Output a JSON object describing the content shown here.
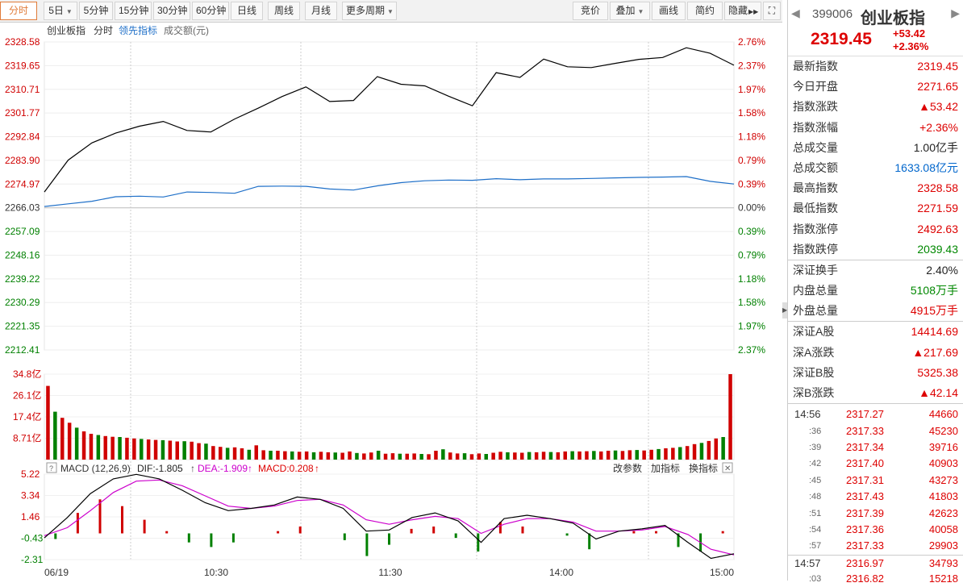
{
  "toolbar": {
    "periods": [
      "分时",
      "5日",
      "5分钟",
      "15分钟",
      "30分钟",
      "60分钟",
      "日线",
      "周线",
      "月线",
      "更多周期"
    ],
    "actions": [
      "竞价",
      "叠加",
      "画线",
      "简约",
      "隐藏"
    ]
  },
  "legend": {
    "name": "创业板指",
    "mode": "分时",
    "leading": "领先指标",
    "volume": "成交额(元)"
  },
  "price_axis": [
    "2328.58",
    "2319.65",
    "2310.71",
    "2301.77",
    "2292.84",
    "2283.90",
    "2274.97",
    "2266.03",
    "2257.09",
    "2248.16",
    "2239.22",
    "2230.29",
    "2221.35",
    "2212.41"
  ],
  "pct_axis": [
    "2.76%",
    "2.37%",
    "1.97%",
    "1.58%",
    "1.18%",
    "0.79%",
    "0.39%",
    "0.00%",
    "0.39%",
    "0.79%",
    "1.18%",
    "1.58%",
    "1.97%",
    "2.37%"
  ],
  "volume_axis": [
    "34.8亿",
    "26.1亿",
    "17.4亿",
    "8.71亿"
  ],
  "macd": {
    "title": "MACD (12,26,9)",
    "dif": "DIF:-1.805",
    "dea": "DEA:-1.909",
    "macd": "MACD:0.208",
    "actions": [
      "改参数",
      "加指标",
      "换指标"
    ],
    "axis": [
      "5.22",
      "3.34",
      "1.46",
      "-0.43",
      "-2.31"
    ]
  },
  "time_axis": [
    "06/19",
    "10:30",
    "11:30",
    "14:00",
    "15:00"
  ],
  "colors": {
    "up": "#d00000",
    "down": "#008000",
    "avg_line": "#1e6fc8",
    "dea": "#cc00cc"
  },
  "quote": {
    "code": "399006",
    "name": "创业板指",
    "price": "2319.45",
    "change": "+53.42",
    "change_pct": "+2.36%",
    "rows": [
      {
        "label": "最新指数",
        "value": "2319.45",
        "color": "red"
      },
      {
        "label": "今日开盘",
        "value": "2271.65",
        "color": "red"
      },
      {
        "label": "指数涨跌",
        "value": "▲53.42",
        "color": "red"
      },
      {
        "label": "指数涨幅",
        "value": "+2.36%",
        "color": "red"
      },
      {
        "label": "总成交量",
        "value": "1.00亿手",
        "color": "black"
      },
      {
        "label": "总成交额",
        "value": "1633.08亿元",
        "color": "blue"
      },
      {
        "label": "最高指数",
        "value": "2328.58",
        "color": "red"
      },
      {
        "label": "最低指数",
        "value": "2271.59",
        "color": "red"
      },
      {
        "label": "指数涨停",
        "value": "2492.63",
        "color": "red"
      },
      {
        "label": "指数跌停",
        "value": "2039.43",
        "color": "green"
      }
    ],
    "rows2": [
      {
        "label": "深证换手",
        "value": "2.40%",
        "color": "black"
      },
      {
        "label": "内盘总量",
        "value": "5108万手",
        "color": "green"
      },
      {
        "label": "外盘总量",
        "value": "4915万手",
        "color": "red"
      }
    ],
    "rows3": [
      {
        "label": "深证A股",
        "value": "14414.69",
        "color": "red"
      },
      {
        "label": "深A涨跌",
        "value": "▲217.69",
        "color": "red"
      },
      {
        "label": "深证B股",
        "value": "5325.38",
        "color": "red"
      },
      {
        "label": "深B涨跌",
        "value": "▲42.14",
        "color": "red"
      }
    ]
  },
  "trades": [
    {
      "time": "14:56",
      "price": "2317.27",
      "vol": "44660"
    },
    {
      "time": ":36",
      "price": "2317.33",
      "vol": "45230"
    },
    {
      "time": ":39",
      "price": "2317.34",
      "vol": "39716"
    },
    {
      "time": ":42",
      "price": "2317.40",
      "vol": "40903"
    },
    {
      "time": ":45",
      "price": "2317.31",
      "vol": "43273"
    },
    {
      "time": ":48",
      "price": "2317.43",
      "vol": "41803"
    },
    {
      "time": ":51",
      "price": "2317.39",
      "vol": "42623"
    },
    {
      "time": ":54",
      "price": "2317.36",
      "vol": "40058"
    },
    {
      "time": ":57",
      "price": "2317.33",
      "vol": "29903"
    },
    {
      "time": "14:57",
      "price": "2316.97",
      "vol": "34793"
    },
    {
      "time": ":03",
      "price": "2316.82",
      "vol": "15218"
    }
  ],
  "chart_data": {
    "type": "line",
    "x_range": [
      "09:30",
      "15:00"
    ],
    "ylim": [
      2212.41,
      2328.58
    ],
    "prev_close": 2266.03,
    "series": [
      {
        "values": [
          2272.0,
          2284.0,
          2290.5,
          2294.2,
          2296.8,
          2298.6,
          2295.2,
          2294.6,
          2299.5,
          2303.6,
          2308.0,
          2311.6,
          2306.1,
          2306.5,
          2315.5,
          2312.6,
          2312.0,
          2308.1,
          2304.5,
          2317.0,
          2315.2,
          2322.1,
          2319.2,
          2318.9,
          2320.5,
          2322.0,
          2322.7,
          2326.4,
          2324.3,
          2319.8
        ]
      },
      {
        "values": [
          2266.5,
          2267.5,
          2268.5,
          2270.2,
          2270.4,
          2270.1,
          2272.0,
          2271.8,
          2271.5,
          2274.1,
          2274.2,
          2274.1,
          2273.1,
          2272.7,
          2274.3,
          2275.5,
          2276.2,
          2276.5,
          2276.4,
          2277.0,
          2276.6,
          2276.9,
          2276.9,
          2277.1,
          2277.3,
          2277.5,
          2277.6,
          2277.8,
          2276.0,
          2275.0
        ]
      }
    ],
    "volume_ylim": [
      0,
      34.8
    ],
    "volume": [
      30.0,
      19.5,
      17.0,
      15.0,
      13.0,
      11.5,
      10.5,
      10.0,
      9.6,
      9.3,
      9.2,
      8.9,
      8.6,
      8.4,
      8.2,
      8.0,
      7.9,
      7.7,
      7.4,
      7.5,
      7.3,
      6.7,
      6.5,
      5.5,
      5.2,
      4.8,
      5.0,
      4.6,
      4.0,
      5.8,
      3.8,
      3.6,
      3.6,
      3.4,
      3.3,
      3.2,
      3.3,
      3.0,
      3.2,
      3.0,
      2.9,
      2.8,
      3.3,
      2.7,
      2.5,
      2.9,
      3.6,
      2.4,
      2.6,
      2.4,
      2.4,
      2.5,
      2.3,
      2.2,
      3.6,
      4.2,
      2.9,
      2.5,
      2.6,
      2.2,
      2.5,
      2.3,
      2.8,
      3.2,
      3.0,
      2.9,
      2.8,
      3.1,
      3.0,
      3.2,
      3.1,
      3.0,
      3.3,
      3.4,
      3.3,
      3.4,
      3.5,
      3.3,
      3.6,
      3.7,
      3.5,
      3.8,
      3.9,
      3.7,
      4.0,
      4.3,
      4.6,
      4.8,
      5.1,
      5.5,
      6.3,
      6.8,
      7.6,
      8.6,
      9.2,
      34.8
    ],
    "macd_ylim": [
      -2.31,
      5.22
    ],
    "macd_dif": [
      -0.4,
      1.4,
      3.5,
      4.8,
      5.2,
      4.8,
      3.8,
      2.7,
      2.0,
      2.2,
      2.5,
      3.2,
      3.0,
      2.2,
      0.2,
      0.3,
      1.4,
      1.8,
      1.1,
      -0.8,
      1.3,
      1.6,
      1.3,
      0.9,
      -0.5,
      0.2,
      0.4,
      0.7,
      -0.8,
      -2.2,
      -1.8
    ],
    "macd_dea": [
      -0.2,
      0.5,
      2.0,
      3.6,
      4.6,
      4.7,
      4.2,
      3.3,
      2.4,
      2.2,
      2.4,
      2.9,
      3.0,
      2.5,
      1.2,
      0.8,
      1.2,
      1.5,
      1.3,
      0.0,
      0.8,
      1.3,
      1.3,
      1.0,
      0.2,
      0.2,
      0.3,
      0.6,
      -0.1,
      -1.4,
      -1.9
    ],
    "macd_hist": [
      -0.5,
      1.8,
      3.0,
      2.4,
      1.2,
      0.2,
      -0.8,
      -1.2,
      -0.8,
      0.0,
      0.2,
      0.6,
      0.0,
      -0.6,
      -2.0,
      -1.0,
      0.4,
      0.6,
      -0.4,
      -1.6,
      1.0,
      0.6,
      0.0,
      -0.2,
      -1.4,
      0.0,
      0.2,
      0.2,
      -1.2,
      -1.6,
      0.2
    ]
  }
}
